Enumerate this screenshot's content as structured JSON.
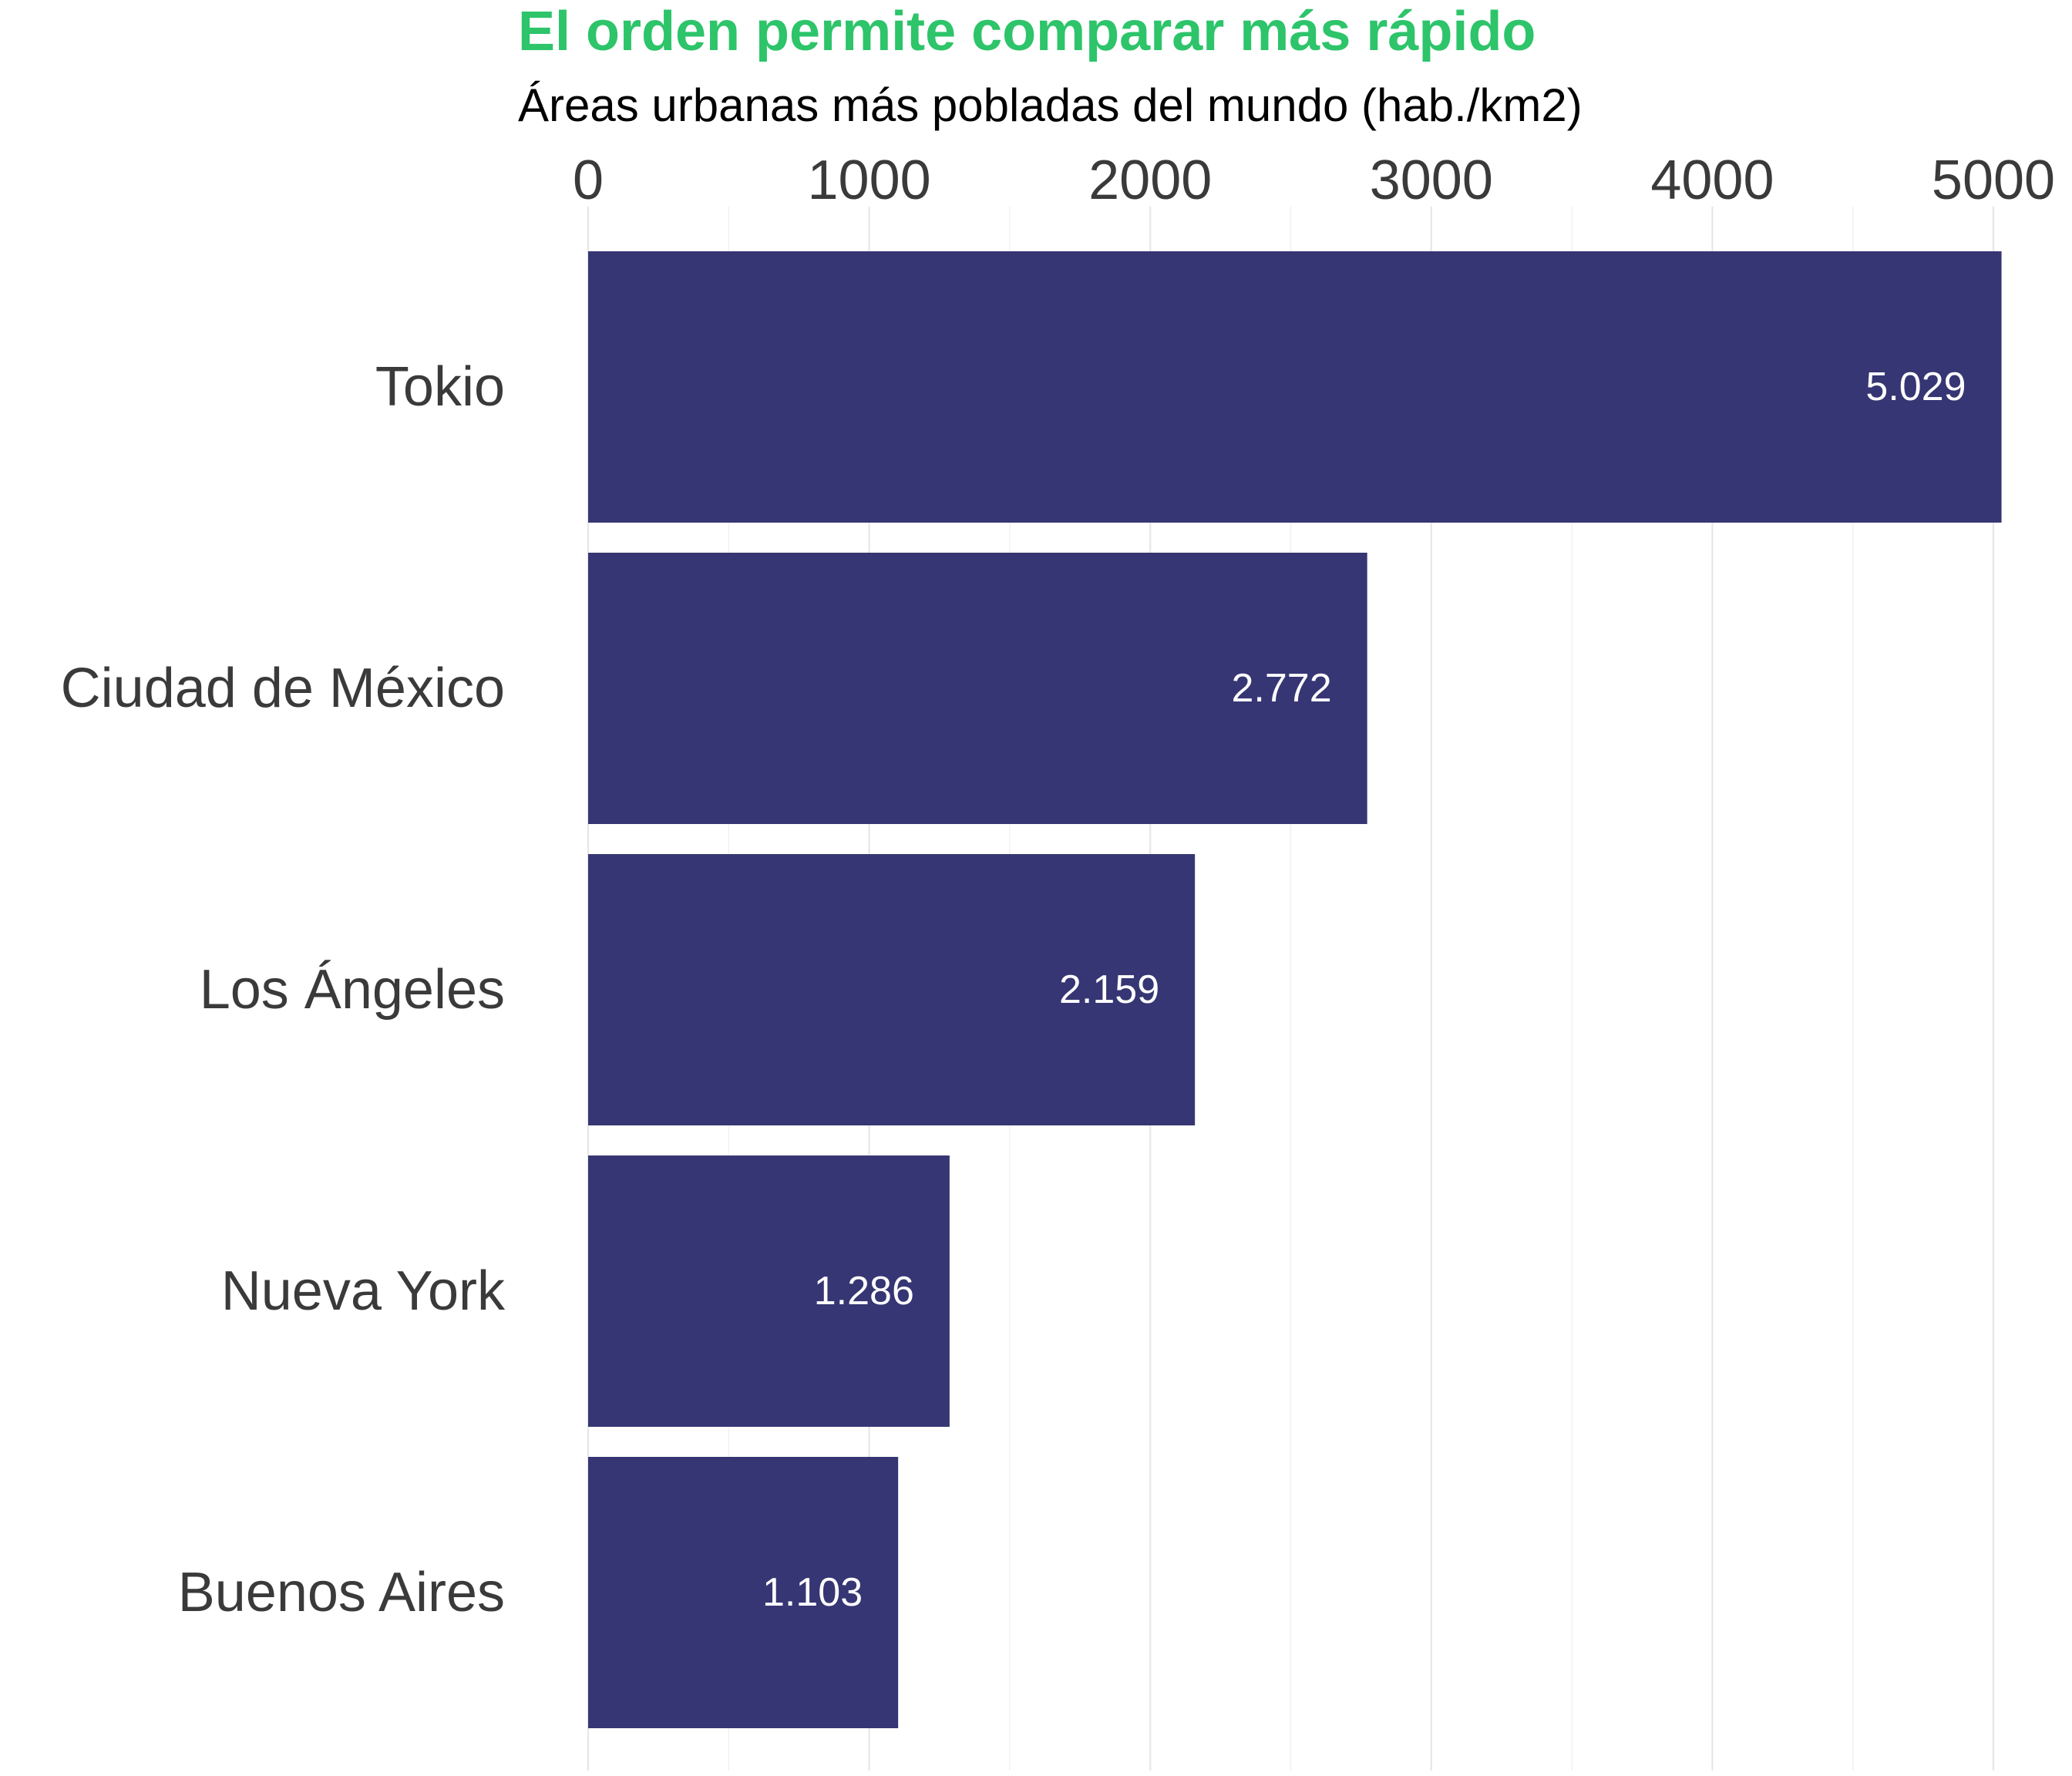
{
  "chart_data": {
    "type": "bar",
    "orientation": "horizontal",
    "title": "El orden permite comparar más rápido",
    "subtitle": "Áreas urbanas más pobladas del mundo (hab./km2)",
    "categories": [
      "Tokio",
      "Ciudad de México",
      "Los Ángeles",
      "Nueva York",
      "Buenos Aires"
    ],
    "values": [
      5029,
      2772,
      2159,
      1286,
      1103
    ],
    "data_labels": [
      "5.029",
      "2.772",
      "2.159",
      "1.286",
      "1.103"
    ],
    "x_ticks": [
      "0",
      "1000",
      "2000",
      "3000",
      "4000",
      "5000"
    ],
    "xlim": [
      0,
      5000
    ],
    "xaxis_position": "top",
    "grid": true,
    "legend": "none",
    "colors": {
      "bar": "#363674",
      "title": "#2dc46a",
      "text": "#3a3a3a",
      "data_label": "#ffffff"
    }
  }
}
